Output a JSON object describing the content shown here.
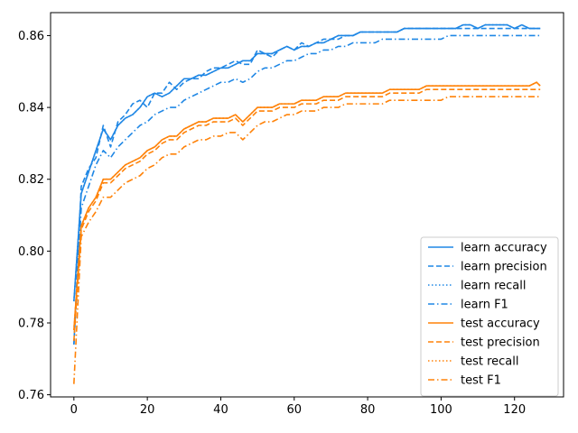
{
  "chart_data": {
    "type": "line",
    "title": "",
    "xlabel": "",
    "ylabel": "",
    "xlim": [
      -6.35,
      133.35
    ],
    "ylim": [
      0.7594,
      0.8664
    ],
    "x_ticks": [
      0,
      20,
      40,
      60,
      80,
      100,
      120
    ],
    "y_ticks": [
      0.76,
      0.78,
      0.8,
      0.82,
      0.84,
      0.86
    ],
    "x_tick_labels": [
      "0",
      "20",
      "40",
      "60",
      "80",
      "100",
      "120"
    ],
    "y_tick_labels": [
      "0.76",
      "0.78",
      "0.80",
      "0.82",
      "0.84",
      "0.86"
    ],
    "grid": false,
    "legend_position": "lower-right",
    "colors": {
      "learn": "#1f87e5",
      "test": "#ff8208"
    },
    "x": [
      0,
      2,
      4,
      6,
      8,
      10,
      12,
      14,
      16,
      18,
      20,
      22,
      24,
      26,
      28,
      30,
      32,
      34,
      36,
      38,
      40,
      42,
      44,
      46,
      48,
      50,
      52,
      54,
      56,
      58,
      60,
      62,
      64,
      66,
      68,
      70,
      72,
      74,
      76,
      78,
      80,
      82,
      84,
      86,
      88,
      90,
      92,
      94,
      96,
      98,
      100,
      102,
      104,
      106,
      108,
      110,
      112,
      114,
      116,
      118,
      120,
      122,
      124,
      126,
      127
    ],
    "series": [
      {
        "name": "learn accuracy",
        "group": "learn",
        "style": "solid",
        "values": [
          0.786,
          0.816,
          0.822,
          0.828,
          0.834,
          0.831,
          0.835,
          0.837,
          0.838,
          0.84,
          0.843,
          0.844,
          0.843,
          0.844,
          0.846,
          0.848,
          0.848,
          0.849,
          0.849,
          0.85,
          0.851,
          0.851,
          0.852,
          0.853,
          0.853,
          0.855,
          0.855,
          0.855,
          0.856,
          0.857,
          0.856,
          0.857,
          0.857,
          0.858,
          0.858,
          0.859,
          0.86,
          0.86,
          0.86,
          0.861,
          0.861,
          0.861,
          0.861,
          0.861,
          0.861,
          0.862,
          0.862,
          0.862,
          0.862,
          0.862,
          0.862,
          0.862,
          0.862,
          0.863,
          0.863,
          0.862,
          0.863,
          0.863,
          0.863,
          0.863,
          0.862,
          0.863,
          0.862,
          0.862,
          0.862
        ]
      },
      {
        "name": "learn precision",
        "group": "learn",
        "style": "dashed",
        "values": [
          0.774,
          0.818,
          0.823,
          0.826,
          0.835,
          0.829,
          0.836,
          0.838,
          0.841,
          0.842,
          0.84,
          0.844,
          0.844,
          0.847,
          0.845,
          0.847,
          0.848,
          0.848,
          0.85,
          0.851,
          0.851,
          0.852,
          0.853,
          0.852,
          0.852,
          0.856,
          0.855,
          0.854,
          0.856,
          0.857,
          0.856,
          0.858,
          0.857,
          0.858,
          0.859,
          0.859,
          0.859,
          0.86,
          0.86,
          0.861,
          0.861,
          0.861,
          0.861,
          0.861,
          0.861,
          0.862,
          0.862,
          0.862,
          0.862,
          0.862,
          0.862,
          0.862,
          0.862,
          0.862,
          0.862,
          0.862,
          0.862,
          0.862,
          0.862,
          0.862,
          0.862,
          0.862,
          0.862,
          0.862,
          0.862
        ]
      },
      {
        "name": "learn recall",
        "group": "learn",
        "style": "dotted",
        "values": [
          0.786,
          0.816,
          0.822,
          0.828,
          0.834,
          0.831,
          0.835,
          0.837,
          0.838,
          0.84,
          0.843,
          0.844,
          0.843,
          0.844,
          0.846,
          0.848,
          0.848,
          0.849,
          0.849,
          0.85,
          0.851,
          0.851,
          0.852,
          0.853,
          0.853,
          0.855,
          0.855,
          0.855,
          0.856,
          0.857,
          0.856,
          0.857,
          0.857,
          0.858,
          0.858,
          0.859,
          0.86,
          0.86,
          0.86,
          0.861,
          0.861,
          0.861,
          0.861,
          0.861,
          0.861,
          0.862,
          0.862,
          0.862,
          0.862,
          0.862,
          0.862,
          0.862,
          0.862,
          0.863,
          0.863,
          0.862,
          0.863,
          0.863,
          0.863,
          0.863,
          0.862,
          0.863,
          0.862,
          0.862,
          0.862
        ]
      },
      {
        "name": "learn F1",
        "group": "learn",
        "style": "dashdot",
        "values": [
          0.774,
          0.812,
          0.818,
          0.824,
          0.828,
          0.826,
          0.829,
          0.831,
          0.833,
          0.835,
          0.836,
          0.838,
          0.839,
          0.84,
          0.84,
          0.842,
          0.843,
          0.844,
          0.845,
          0.846,
          0.847,
          0.847,
          0.848,
          0.847,
          0.848,
          0.85,
          0.851,
          0.851,
          0.852,
          0.853,
          0.853,
          0.854,
          0.855,
          0.855,
          0.856,
          0.856,
          0.857,
          0.857,
          0.858,
          0.858,
          0.858,
          0.858,
          0.859,
          0.859,
          0.859,
          0.859,
          0.859,
          0.859,
          0.859,
          0.859,
          0.859,
          0.86,
          0.86,
          0.86,
          0.86,
          0.86,
          0.86,
          0.86,
          0.86,
          0.86,
          0.86,
          0.86,
          0.86,
          0.86,
          0.86
        ]
      },
      {
        "name": "test accuracy",
        "group": "test",
        "style": "solid",
        "values": [
          0.778,
          0.807,
          0.812,
          0.815,
          0.82,
          0.82,
          0.822,
          0.824,
          0.825,
          0.826,
          0.828,
          0.829,
          0.831,
          0.832,
          0.832,
          0.834,
          0.835,
          0.836,
          0.836,
          0.837,
          0.837,
          0.837,
          0.838,
          0.836,
          0.838,
          0.84,
          0.84,
          0.84,
          0.841,
          0.841,
          0.841,
          0.842,
          0.842,
          0.842,
          0.843,
          0.843,
          0.843,
          0.844,
          0.844,
          0.844,
          0.844,
          0.844,
          0.844,
          0.845,
          0.845,
          0.845,
          0.845,
          0.845,
          0.846,
          0.846,
          0.846,
          0.846,
          0.846,
          0.846,
          0.846,
          0.846,
          0.846,
          0.846,
          0.846,
          0.846,
          0.846,
          0.846,
          0.846,
          0.847,
          0.846
        ]
      },
      {
        "name": "test precision",
        "group": "test",
        "style": "dashed",
        "values": [
          0.775,
          0.806,
          0.811,
          0.814,
          0.819,
          0.819,
          0.821,
          0.823,
          0.824,
          0.825,
          0.827,
          0.828,
          0.83,
          0.831,
          0.831,
          0.833,
          0.834,
          0.835,
          0.835,
          0.836,
          0.836,
          0.836,
          0.837,
          0.835,
          0.837,
          0.839,
          0.839,
          0.839,
          0.84,
          0.84,
          0.84,
          0.841,
          0.841,
          0.841,
          0.842,
          0.842,
          0.842,
          0.843,
          0.843,
          0.843,
          0.843,
          0.843,
          0.843,
          0.844,
          0.844,
          0.844,
          0.844,
          0.844,
          0.845,
          0.845,
          0.845,
          0.845,
          0.845,
          0.845,
          0.845,
          0.845,
          0.845,
          0.845,
          0.845,
          0.845,
          0.845,
          0.845,
          0.845,
          0.845,
          0.845
        ]
      },
      {
        "name": "test recall",
        "group": "test",
        "style": "dotted",
        "values": [
          0.778,
          0.807,
          0.812,
          0.815,
          0.82,
          0.82,
          0.822,
          0.824,
          0.825,
          0.826,
          0.828,
          0.829,
          0.831,
          0.832,
          0.832,
          0.834,
          0.835,
          0.836,
          0.836,
          0.837,
          0.837,
          0.837,
          0.838,
          0.836,
          0.838,
          0.84,
          0.84,
          0.84,
          0.841,
          0.841,
          0.841,
          0.842,
          0.842,
          0.842,
          0.843,
          0.843,
          0.843,
          0.844,
          0.844,
          0.844,
          0.844,
          0.844,
          0.844,
          0.845,
          0.845,
          0.845,
          0.845,
          0.845,
          0.846,
          0.846,
          0.846,
          0.846,
          0.846,
          0.846,
          0.846,
          0.846,
          0.846,
          0.846,
          0.846,
          0.846,
          0.846,
          0.846,
          0.846,
          0.847,
          0.846
        ]
      },
      {
        "name": "test F1",
        "group": "test",
        "style": "dashdot",
        "values": [
          0.763,
          0.804,
          0.808,
          0.811,
          0.815,
          0.815,
          0.817,
          0.819,
          0.82,
          0.821,
          0.823,
          0.824,
          0.826,
          0.827,
          0.827,
          0.829,
          0.83,
          0.831,
          0.831,
          0.832,
          0.832,
          0.833,
          0.833,
          0.831,
          0.833,
          0.835,
          0.836,
          0.836,
          0.837,
          0.838,
          0.838,
          0.839,
          0.839,
          0.839,
          0.84,
          0.84,
          0.84,
          0.841,
          0.841,
          0.841,
          0.841,
          0.841,
          0.841,
          0.842,
          0.842,
          0.842,
          0.842,
          0.842,
          0.842,
          0.842,
          0.842,
          0.843,
          0.843,
          0.843,
          0.843,
          0.843,
          0.843,
          0.843,
          0.843,
          0.843,
          0.843,
          0.843,
          0.843,
          0.843,
          0.843
        ]
      }
    ]
  }
}
